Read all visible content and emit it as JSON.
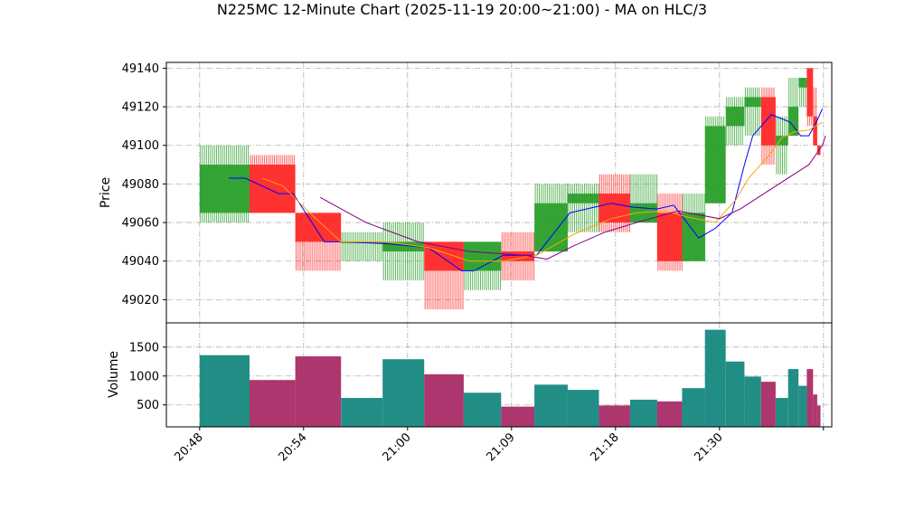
{
  "chart_data": {
    "type": "candlestick",
    "title": "N225MC 12-Minute Chart (2025-11-19 20:00~21:00) - MA on HLC/3",
    "price_panel": {
      "ylabel": "Price",
      "ylim": [
        49008,
        49143
      ],
      "yticks": [
        49020,
        49040,
        49060,
        49080,
        49100,
        49120,
        49140
      ]
    },
    "volume_panel": {
      "ylabel": "Volume",
      "ylim": [
        120,
        1920
      ],
      "yticks": [
        500,
        1000,
        1500
      ]
    },
    "x_axis": {
      "range": [
        -1.6,
        30.4
      ],
      "ticks": [
        {
          "index": 0,
          "label": "20:48"
        },
        {
          "index": 5,
          "label": "20:54"
        },
        {
          "index": 10,
          "label": "21:00"
        },
        {
          "index": 15,
          "label": "21:09"
        },
        {
          "index": 20,
          "label": "21:18"
        },
        {
          "index": 25,
          "label": "21:30"
        },
        {
          "index": 30,
          "label": ""
        }
      ]
    },
    "candles": [
      {
        "o": 49065,
        "h": 49100,
        "l": 49060,
        "c": 49090,
        "w": 2.4,
        "v": 1360
      },
      {
        "o": 49090,
        "h": 49095,
        "l": 49065,
        "c": 49065,
        "w": 2.2,
        "v": 930
      },
      {
        "o": 49065,
        "h": 49065,
        "l": 49035,
        "c": 49050,
        "w": 2.2,
        "v": 1340
      },
      {
        "o": 49050,
        "h": 49055,
        "l": 49040,
        "c": 49050,
        "w": 2.0,
        "v": 620
      },
      {
        "o": 49045,
        "h": 49060,
        "l": 49030,
        "c": 49050,
        "w": 2.0,
        "v": 1290
      },
      {
        "o": 49050,
        "h": 49050,
        "l": 49015,
        "c": 49035,
        "w": 1.9,
        "v": 1030
      },
      {
        "o": 49035,
        "h": 49050,
        "l": 49025,
        "c": 49050,
        "w": 1.8,
        "v": 710
      },
      {
        "o": 49045,
        "h": 49055,
        "l": 49030,
        "c": 49040,
        "w": 1.6,
        "v": 470
      },
      {
        "o": 49045,
        "h": 49080,
        "l": 49045,
        "c": 49070,
        "w": 1.6,
        "v": 850
      },
      {
        "o": 49070,
        "h": 49080,
        "l": 49055,
        "c": 49075,
        "w": 1.5,
        "v": 760
      },
      {
        "o": 49075,
        "h": 49085,
        "l": 49055,
        "c": 49060,
        "w": 1.5,
        "v": 490
      },
      {
        "o": 49060,
        "h": 49085,
        "l": 49060,
        "c": 49070,
        "w": 1.3,
        "v": 590
      },
      {
        "o": 49065,
        "h": 49075,
        "l": 49035,
        "c": 49040,
        "w": 1.2,
        "v": 560
      },
      {
        "o": 49040,
        "h": 49075,
        "l": 49040,
        "c": 49065,
        "w": 1.1,
        "v": 790
      },
      {
        "o": 49070,
        "h": 49115,
        "l": 49070,
        "c": 49110,
        "w": 1.0,
        "v": 1800
      },
      {
        "o": 49110,
        "h": 49125,
        "l": 49100,
        "c": 49120,
        "w": 0.9,
        "v": 1250
      },
      {
        "o": 49120,
        "h": 49130,
        "l": 49105,
        "c": 49125,
        "w": 0.8,
        "v": 990
      },
      {
        "o": 49125,
        "h": 49130,
        "l": 49090,
        "c": 49100,
        "w": 0.7,
        "v": 900
      },
      {
        "o": 49100,
        "h": 49115,
        "l": 49085,
        "c": 49105,
        "w": 0.6,
        "v": 620
      },
      {
        "o": 49105,
        "h": 49135,
        "l": 49105,
        "c": 49120,
        "w": 0.5,
        "v": 1120
      },
      {
        "o": 49130,
        "h": 49135,
        "l": 49120,
        "c": 49135,
        "w": 0.4,
        "v": 830
      },
      {
        "o": 49140,
        "h": 49140,
        "l": 49110,
        "c": 49115,
        "w": 0.3,
        "v": 1120
      },
      {
        "o": 49115,
        "h": 49130,
        "l": 49100,
        "c": 49100,
        "w": 0.2,
        "v": 680
      },
      {
        "o": 49100,
        "h": 49100,
        "l": 49095,
        "c": 49095,
        "w": 0.15,
        "v": 490
      }
    ],
    "series": [
      {
        "color": "#0000ff",
        "points": [
          [
            1.4,
            49083
          ],
          [
            2.2,
            49083
          ],
          [
            3.8,
            49075
          ],
          [
            4.5,
            49075
          ],
          [
            6.0,
            49050
          ],
          [
            7.0,
            49050
          ],
          [
            9.0,
            49049
          ],
          [
            11.0,
            49047
          ],
          [
            12.6,
            49035
          ],
          [
            13.2,
            49035
          ],
          [
            14.6,
            49043
          ],
          [
            16.2,
            49043
          ],
          [
            17.8,
            49065
          ],
          [
            19.0,
            49068
          ],
          [
            19.8,
            49070
          ],
          [
            20.8,
            49068
          ],
          [
            22.0,
            49067
          ],
          [
            22.8,
            49069
          ],
          [
            24.0,
            49052
          ],
          [
            24.8,
            49057
          ],
          [
            25.6,
            49065
          ],
          [
            26.2,
            49090
          ],
          [
            26.6,
            49105
          ],
          [
            27.5,
            49116
          ],
          [
            28.4,
            49112
          ],
          [
            28.9,
            49105
          ],
          [
            29.3,
            49105
          ],
          [
            29.7,
            49113
          ],
          [
            29.95,
            49119
          ]
        ]
      },
      {
        "color": "#ffa500",
        "points": [
          [
            3.0,
            49083
          ],
          [
            4.0,
            49079
          ],
          [
            5.2,
            49066
          ],
          [
            6.8,
            49050
          ],
          [
            9.0,
            49050
          ],
          [
            11.0,
            49047
          ],
          [
            13.0,
            49040
          ],
          [
            14.6,
            49040
          ],
          [
            16.2,
            49043
          ],
          [
            18.0,
            49054
          ],
          [
            19.8,
            49062
          ],
          [
            21.0,
            49065
          ],
          [
            22.4,
            49066
          ],
          [
            23.4,
            49063
          ],
          [
            24.8,
            49060
          ],
          [
            25.8,
            49072
          ],
          [
            26.4,
            49083
          ],
          [
            27.4,
            49095
          ],
          [
            28.0,
            49104
          ],
          [
            28.6,
            49107
          ],
          [
            29.3,
            49108
          ],
          [
            29.95,
            49112
          ]
        ]
      },
      {
        "color": "#800080",
        "points": [
          [
            5.8,
            49073
          ],
          [
            8.0,
            49060
          ],
          [
            10.5,
            49050
          ],
          [
            13.0,
            49045
          ],
          [
            15.6,
            49043
          ],
          [
            16.7,
            49041
          ],
          [
            18.0,
            49048
          ],
          [
            19.5,
            49055
          ],
          [
            21.0,
            49060
          ],
          [
            23.0,
            49066
          ],
          [
            25.0,
            49062
          ],
          [
            26.0,
            49067
          ],
          [
            27.0,
            49074
          ],
          [
            28.0,
            49081
          ],
          [
            29.3,
            49090
          ],
          [
            29.95,
            49100
          ],
          [
            30.1,
            49105
          ]
        ]
      }
    ],
    "colors": {
      "up": "#2ca02c",
      "down": "#ff2a2a",
      "volume_up": "#1f9a6a",
      "volume_down": "#c0345c",
      "volume_stripe_up": "#2a6fd0",
      "volume_stripe_down": "#7a3fa0"
    }
  }
}
